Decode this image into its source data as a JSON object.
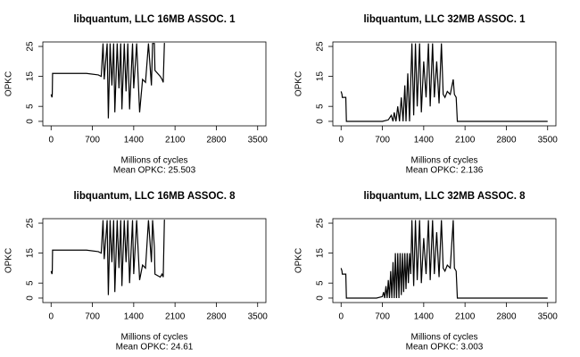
{
  "chart_data": [
    {
      "type": "line",
      "title": "libquantum, LLC 16MB ASSOC. 1",
      "xlabel": "Millions of cycles",
      "subtitle": "Mean OPKC: 25.503",
      "ylabel": "OPKC",
      "color": "#000000",
      "xlim": [
        -140,
        3640
      ],
      "ylim": [
        -1.5,
        26.5
      ],
      "xticks": [
        0,
        700,
        1400,
        2100,
        2800,
        3500
      ],
      "yticks": [
        0,
        5,
        15,
        25
      ],
      "x": [
        0,
        15,
        20,
        25,
        600,
        800,
        850,
        880,
        900,
        950,
        970,
        1000,
        1030,
        1060,
        1080,
        1120,
        1150,
        1180,
        1200,
        1240,
        1270,
        1300,
        1330,
        1380,
        1400,
        1450,
        1500,
        1550,
        1600,
        1650,
        1700,
        1720,
        1750,
        1760,
        1850,
        1880,
        1900,
        1920,
        1930
      ],
      "values": [
        9,
        8,
        9,
        16,
        16,
        15.5,
        15,
        26,
        14,
        26,
        1,
        26,
        12,
        26,
        3,
        26,
        11,
        26,
        4,
        26,
        10,
        26,
        4,
        26,
        11,
        26,
        3,
        14,
        13,
        26,
        12,
        26,
        26,
        17,
        15,
        14,
        13,
        26,
        26
      ]
    },
    {
      "type": "line",
      "title": "libquantum, LLC 32MB ASSOC. 1",
      "xlabel": "Millions of cycles",
      "subtitle": "Mean OPKC: 2.136",
      "ylabel": "OPKC",
      "color": "#000000",
      "xlim": [
        -140,
        3640
      ],
      "ylim": [
        -1.5,
        26.5
      ],
      "xticks": [
        0,
        700,
        1400,
        2100,
        2800,
        3500
      ],
      "yticks": [
        0,
        5,
        15,
        25
      ],
      "x": [
        0,
        15,
        20,
        80,
        90,
        700,
        800,
        850,
        880,
        900,
        930,
        960,
        990,
        1020,
        1050,
        1080,
        1100,
        1130,
        1160,
        1200,
        1230,
        1260,
        1290,
        1330,
        1360,
        1400,
        1440,
        1480,
        1510,
        1550,
        1580,
        1620,
        1660,
        1700,
        1730,
        1760,
        1800,
        1850,
        1900,
        1920,
        1950,
        1970,
        3500
      ],
      "values": [
        10,
        9,
        8,
        8,
        0,
        0,
        0.5,
        2,
        0,
        3,
        0,
        5,
        0,
        8,
        0,
        12,
        0,
        16,
        0,
        26,
        2,
        26,
        5,
        26,
        3,
        20,
        8,
        26,
        5,
        26,
        8,
        20,
        6,
        26,
        9,
        8,
        10,
        9,
        14,
        9,
        8,
        0,
        0
      ]
    },
    {
      "type": "line",
      "title": "libquantum, LLC 16MB ASSOC. 8",
      "xlabel": "Millions of cycles",
      "subtitle": "Mean OPKC: 24.61",
      "ylabel": "OPKC",
      "color": "#000000",
      "xlim": [
        -140,
        3640
      ],
      "ylim": [
        -1.5,
        26.5
      ],
      "xticks": [
        0,
        700,
        1400,
        2100,
        2800,
        3500
      ],
      "yticks": [
        0,
        5,
        15,
        25
      ],
      "x": [
        0,
        15,
        20,
        25,
        600,
        800,
        850,
        880,
        900,
        950,
        970,
        1000,
        1030,
        1060,
        1080,
        1120,
        1150,
        1180,
        1200,
        1240,
        1270,
        1300,
        1330,
        1380,
        1400,
        1450,
        1500,
        1550,
        1600,
        1650,
        1700,
        1720,
        1750,
        1760,
        1850,
        1880,
        1900,
        1920,
        1930
      ],
      "values": [
        9,
        8,
        9,
        16,
        16,
        15.5,
        15,
        26,
        13,
        26,
        1,
        26,
        12,
        26,
        2,
        26,
        10,
        26,
        4,
        26,
        12,
        26,
        5,
        26,
        8,
        26,
        6,
        11,
        10,
        26,
        12,
        26,
        17,
        8,
        7,
        8,
        7,
        26,
        26
      ]
    },
    {
      "type": "line",
      "title": "libquantum, LLC 32MB ASSOC. 8",
      "xlabel": "Millions of cycles",
      "subtitle": "Mean OPKC: 3.003",
      "ylabel": "OPKC",
      "color": "#000000",
      "xlim": [
        -140,
        3640
      ],
      "ylim": [
        -1.5,
        26.5
      ],
      "xticks": [
        0,
        700,
        1400,
        2100,
        2800,
        3500
      ],
      "yticks": [
        0,
        5,
        15,
        25
      ],
      "x": [
        0,
        15,
        20,
        80,
        90,
        600,
        700,
        720,
        740,
        760,
        780,
        800,
        820,
        840,
        860,
        880,
        900,
        920,
        940,
        960,
        980,
        1000,
        1020,
        1040,
        1060,
        1080,
        1100,
        1120,
        1140,
        1160,
        1180,
        1200,
        1230,
        1260,
        1290,
        1330,
        1360,
        1400,
        1440,
        1480,
        1510,
        1550,
        1580,
        1620,
        1660,
        1700,
        1730,
        1760,
        1800,
        1850,
        1900,
        1920,
        1950,
        1970,
        3500
      ],
      "values": [
        10,
        9,
        8,
        8,
        0,
        0,
        0.5,
        2,
        0,
        4,
        0,
        6,
        0,
        9,
        0,
        12,
        0,
        15,
        0,
        15,
        0,
        15,
        1,
        15,
        2,
        15,
        3,
        15,
        5,
        15,
        8,
        26,
        4,
        26,
        6,
        26,
        5,
        20,
        8,
        26,
        6,
        26,
        8,
        22,
        7,
        26,
        10,
        9,
        11,
        10,
        26,
        10,
        9,
        0,
        0
      ]
    }
  ]
}
